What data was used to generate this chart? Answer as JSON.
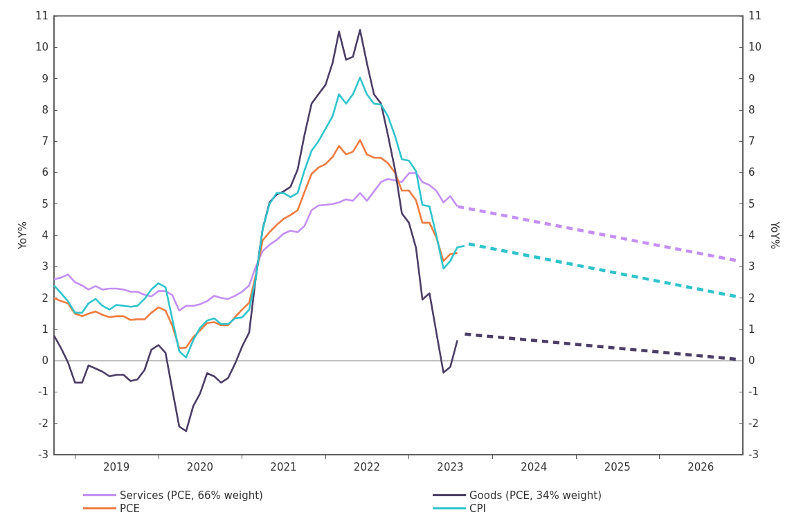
{
  "chart_data": {
    "type": "line",
    "ylabel": "YoY%",
    "y2label": "YoY%",
    "x": [
      "2018-10",
      "2018-11",
      "2018-12",
      "2019-01",
      "2019-02",
      "2019-03",
      "2019-04",
      "2019-05",
      "2019-06",
      "2019-07",
      "2019-08",
      "2019-09",
      "2019-10",
      "2019-11",
      "2019-12",
      "2020-01",
      "2020-02",
      "2020-03",
      "2020-04",
      "2020-05",
      "2020-06",
      "2020-07",
      "2020-08",
      "2020-09",
      "2020-10",
      "2020-11",
      "2020-12",
      "2021-01",
      "2021-02",
      "2021-03",
      "2021-04",
      "2021-05",
      "2021-06",
      "2021-07",
      "2021-08",
      "2021-09",
      "2021-10",
      "2021-11",
      "2021-12",
      "2022-01",
      "2022-02",
      "2022-03",
      "2022-04",
      "2022-05",
      "2022-06",
      "2022-07",
      "2022-08",
      "2022-09",
      "2022-10",
      "2022-11",
      "2022-12",
      "2023-01",
      "2023-02",
      "2023-03",
      "2023-04",
      "2023-05",
      "2023-06",
      "2023-07",
      "2023-08"
    ],
    "series": [
      {
        "name": "Services (PCE, 66% weight)",
        "color": "#c48ff5",
        "values": [
          2.6,
          2.65,
          2.75,
          2.5,
          2.4,
          2.27,
          2.38,
          2.27,
          2.3,
          2.3,
          2.27,
          2.2,
          2.2,
          2.1,
          2.05,
          2.22,
          2.22,
          2.1,
          1.6,
          1.75,
          1.75,
          1.8,
          1.9,
          2.07,
          2.0,
          1.97,
          2.07,
          2.2,
          2.4,
          2.98,
          3.5,
          3.7,
          3.85,
          4.05,
          4.15,
          4.1,
          4.3,
          4.8,
          4.95,
          4.97,
          5.0,
          5.05,
          5.15,
          5.1,
          5.35,
          5.1,
          5.4,
          5.7,
          5.8,
          5.75,
          5.7,
          5.98,
          6.0,
          5.7,
          5.6,
          5.42,
          5.05,
          5.25,
          4.92
        ]
      },
      {
        "name": "PCE",
        "color": "#f07b3f",
        "values": [
          2.0,
          1.9,
          1.83,
          1.5,
          1.42,
          1.5,
          1.57,
          1.46,
          1.39,
          1.42,
          1.42,
          1.3,
          1.32,
          1.32,
          1.53,
          1.7,
          1.6,
          1.13,
          0.4,
          0.42,
          0.75,
          0.97,
          1.2,
          1.23,
          1.13,
          1.13,
          1.39,
          1.63,
          1.85,
          2.7,
          3.84,
          4.1,
          4.33,
          4.52,
          4.65,
          4.8,
          5.38,
          5.96,
          6.16,
          6.27,
          6.5,
          6.85,
          6.58,
          6.67,
          7.04,
          6.58,
          6.48,
          6.47,
          6.3,
          6.0,
          5.43,
          5.43,
          5.12,
          4.4,
          4.4,
          3.93,
          3.18,
          3.4,
          3.44
        ]
      },
      {
        "name": "Goods (PCE, 34% weight)",
        "color": "#4b3d66",
        "values": [
          0.8,
          0.4,
          -0.05,
          -0.7,
          -0.7,
          -0.15,
          -0.25,
          -0.35,
          -0.5,
          -0.45,
          -0.45,
          -0.65,
          -0.6,
          -0.3,
          0.35,
          0.5,
          0.25,
          -0.9,
          -2.1,
          -2.25,
          -1.45,
          -1.05,
          -0.4,
          -0.5,
          -0.7,
          -0.55,
          -0.1,
          0.45,
          0.9,
          2.6,
          4.2,
          5.05,
          5.3,
          5.4,
          5.55,
          6.1,
          7.2,
          8.2,
          8.5,
          8.8,
          9.5,
          10.5,
          9.6,
          9.7,
          10.55,
          9.5,
          8.5,
          8.2,
          7.2,
          6.1,
          4.7,
          4.4,
          3.6,
          1.95,
          2.15,
          0.9,
          -0.38,
          -0.2,
          0.65
        ]
      },
      {
        "name": "CPI",
        "color": "#2ec4cc",
        "x": [
          "2018-10",
          "2018-11",
          "2018-12",
          "2019-01",
          "2019-02",
          "2019-03",
          "2019-04",
          "2019-05",
          "2019-06",
          "2019-07",
          "2019-08",
          "2019-09",
          "2019-10",
          "2019-11",
          "2019-12",
          "2020-01",
          "2020-02",
          "2020-03",
          "2020-04",
          "2020-05",
          "2020-06",
          "2020-07",
          "2020-08",
          "2020-09",
          "2020-10",
          "2020-11",
          "2020-12",
          "2021-01",
          "2021-02",
          "2021-03",
          "2021-04",
          "2021-05",
          "2021-06",
          "2021-07",
          "2021-08",
          "2021-09",
          "2021-10",
          "2021-11",
          "2021-12",
          "2022-01",
          "2022-02",
          "2022-03",
          "2022-04",
          "2022-05",
          "2022-06",
          "2022-07",
          "2022-08",
          "2022-09",
          "2022-10",
          "2022-11",
          "2022-12",
          "2023-01",
          "2023-02",
          "2023-03",
          "2023-04",
          "2023-05",
          "2023-06",
          "2023-07",
          "2023-08",
          "2023-09"
        ],
        "values": [
          2.4,
          2.15,
          1.9,
          1.53,
          1.53,
          1.83,
          1.97,
          1.75,
          1.63,
          1.78,
          1.75,
          1.72,
          1.75,
          1.97,
          2.27,
          2.47,
          2.34,
          1.35,
          0.3,
          0.1,
          0.65,
          1.05,
          1.28,
          1.35,
          1.17,
          1.17,
          1.35,
          1.38,
          1.63,
          2.6,
          4.2,
          5.0,
          5.35,
          5.35,
          5.22,
          5.35,
          6.07,
          6.7,
          7.0,
          7.4,
          7.8,
          8.5,
          8.2,
          8.5,
          9.03,
          8.5,
          8.2,
          8.17,
          7.8,
          7.17,
          6.43,
          6.38,
          6.05,
          4.97,
          4.92,
          4.0,
          2.94,
          3.18,
          3.62,
          3.66
        ]
      },
      {
        "color": "#c48ff5",
        "line_style": "dashed",
        "x": [
          "2023-08",
          "2026-12"
        ],
        "values": [
          4.92,
          3.2
        ]
      },
      {
        "color": "#2ec4cc",
        "line_style": "dashed",
        "x": [
          "2023-09",
          "2026-12"
        ],
        "values": [
          3.75,
          2.05
        ]
      },
      {
        "color": "#4b3d66",
        "line_style": "dashed",
        "x": [
          "2023-09",
          "2026-12"
        ],
        "values": [
          0.85,
          0.05
        ]
      }
    ],
    "xlim": [
      "2018-10",
      "2027-01"
    ],
    "xticks": [
      {
        "value": "2019-01",
        "label": null
      },
      {
        "value": "2019-07",
        "label": "2019"
      },
      {
        "value": "2020-01",
        "label": null
      },
      {
        "value": "2020-07",
        "label": "2020"
      },
      {
        "value": "2021-01",
        "label": null
      },
      {
        "value": "2021-07",
        "label": "2021"
      },
      {
        "value": "2022-01",
        "label": null
      },
      {
        "value": "2022-07",
        "label": "2022"
      },
      {
        "value": "2023-01",
        "label": null
      },
      {
        "value": "2023-07",
        "label": "2023"
      },
      {
        "value": "2024-01",
        "label": null
      },
      {
        "value": "2024-07",
        "label": "2024"
      },
      {
        "value": "2025-01",
        "label": null
      },
      {
        "value": "2025-07",
        "label": "2025"
      },
      {
        "value": "2026-01",
        "label": null
      },
      {
        "value": "2026-07",
        "label": "2026"
      }
    ],
    "ylim": [
      -3,
      11
    ],
    "yticks": [
      -3,
      -2,
      -1,
      0,
      1,
      2,
      3,
      4,
      5,
      6,
      7,
      8,
      9,
      10,
      11
    ],
    "y2lim": [
      -3,
      11
    ],
    "y2ticks": [
      -3,
      -2,
      -1,
      0,
      1,
      2,
      3,
      4,
      5,
      6,
      7,
      8,
      9,
      10,
      11
    ],
    "ref_lines": [
      {
        "axis": "y",
        "value": 0,
        "color": "#555555"
      }
    ],
    "grid": false,
    "legend": "bottom",
    "marker": "none",
    "line_style": "solid"
  }
}
